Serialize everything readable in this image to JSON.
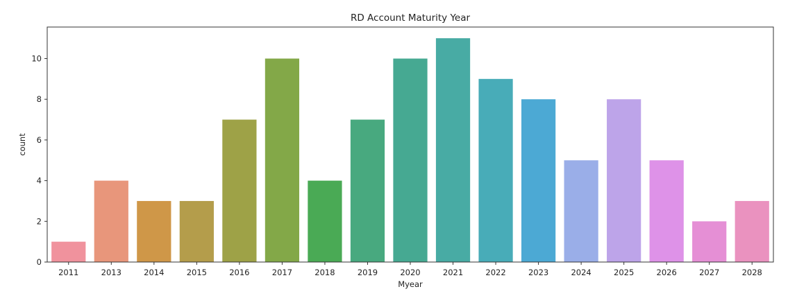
{
  "chart_data": {
    "type": "bar",
    "title": "RD Account Maturity Year",
    "xlabel": "Myear",
    "ylabel": "count",
    "categories": [
      "2011",
      "2013",
      "2014",
      "2015",
      "2016",
      "2017",
      "2018",
      "2019",
      "2020",
      "2021",
      "2022",
      "2023",
      "2024",
      "2025",
      "2026",
      "2027",
      "2028"
    ],
    "values": [
      1,
      4,
      3,
      3,
      7,
      10,
      4,
      7,
      10,
      11,
      9,
      8,
      5,
      8,
      5,
      2,
      3
    ],
    "colors": [
      "#f0929d",
      "#e8967b",
      "#cf9748",
      "#b49d4b",
      "#9ea247",
      "#83a848",
      "#4aaa55",
      "#48a97f",
      "#46a992",
      "#48aba4",
      "#48acb8",
      "#4ca9d4",
      "#9aaee8",
      "#bda4e9",
      "#de92e8",
      "#e58fd5",
      "#ea92bf"
    ],
    "ylim": [
      0,
      11.55
    ],
    "yticks": [
      0,
      2,
      4,
      6,
      8,
      10
    ],
    "grid": false,
    "legend": "none"
  }
}
